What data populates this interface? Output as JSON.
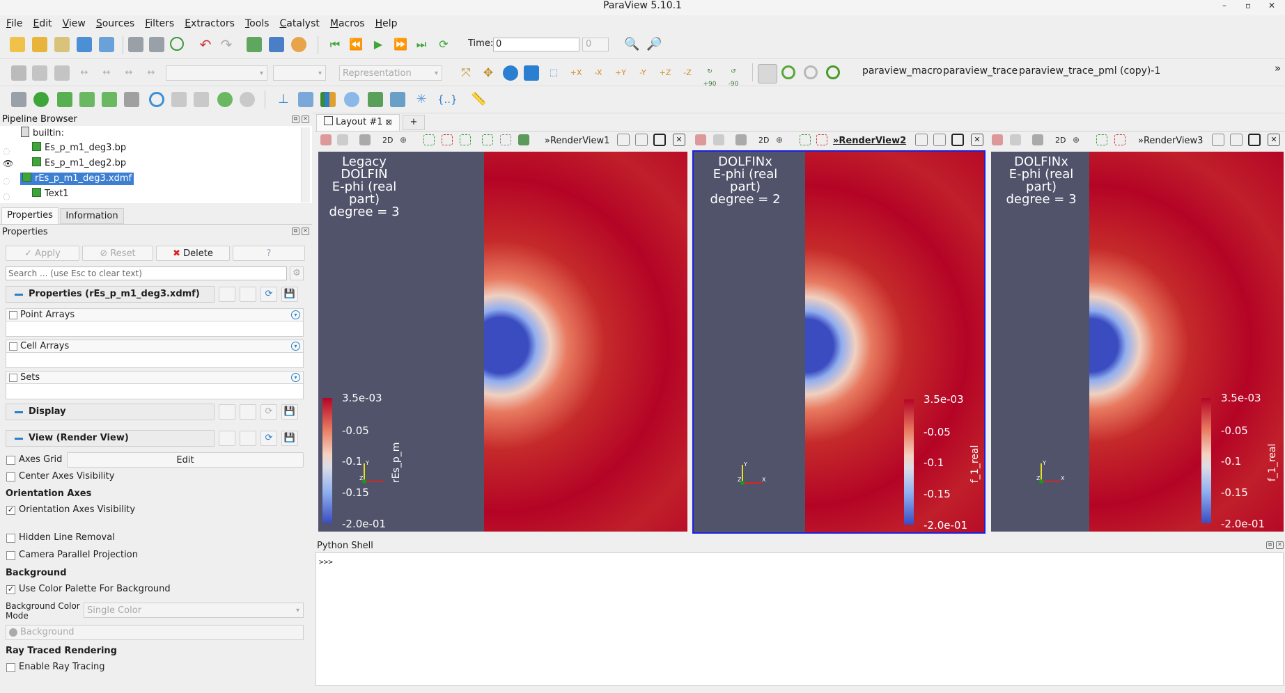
{
  "window": {
    "title": "ParaView 5.10.1"
  },
  "menu": [
    "File",
    "Edit",
    "View",
    "Sources",
    "Filters",
    "Extractors",
    "Tools",
    "Catalyst",
    "Macros",
    "Help"
  ],
  "toolbar": {
    "time_label": "Time:",
    "time_value": "0",
    "time_index": "0",
    "representation_placeholder": "Representation",
    "macros": [
      "paraview_macro",
      "paraview_trace",
      "paraview_trace_pml (copy)-1"
    ],
    "rotate_plus": "+90",
    "rotate_minus": "-90",
    "overflow": "»"
  },
  "pipeline": {
    "title": "Pipeline Browser",
    "root": "builtin:",
    "items": [
      {
        "label": "Es_p_m1_deg3.bp",
        "visible": false,
        "selected": false
      },
      {
        "label": "Es_p_m1_deg2.bp",
        "visible": true,
        "selected": false
      },
      {
        "label": "rEs_p_m1_deg3.xdmf",
        "visible": false,
        "selected": true
      },
      {
        "label": "Text1",
        "visible": false,
        "selected": false
      }
    ]
  },
  "tabs": {
    "properties": "Properties",
    "information": "Information"
  },
  "properties": {
    "title": "Properties",
    "apply": "Apply",
    "reset": "Reset",
    "delete": "Delete",
    "help": "?",
    "search_placeholder": "Search ... (use Esc to clear text)",
    "section_props": "Properties (rEs_p_m1_deg3.xdmf)",
    "point_arrays": "Point Arrays",
    "cell_arrays": "Cell Arrays",
    "sets": "Sets",
    "section_display": "Display",
    "section_view": "View (Render View)",
    "axes_grid": "Axes Grid",
    "edit": "Edit",
    "center_axes": "Center Axes Visibility",
    "orientation_axes": "Orientation Axes",
    "orientation_axes_visibility": "Orientation Axes Visibility",
    "orientation_axes_checked": true,
    "hidden_line": "Hidden Line Removal",
    "camera_parallel": "Camera Parallel Projection",
    "background": "Background",
    "use_palette": "Use Color Palette For Background",
    "use_palette_checked": true,
    "bg_mode_label1": "Background Color",
    "bg_mode_label2": "Mode",
    "bg_mode_value": "Single Color",
    "bg_value": "Background",
    "ray_traced": "Ray Traced Rendering",
    "enable_ray": "Enable Ray Tracing"
  },
  "layout": {
    "tab": "Layout #1",
    "add": "+"
  },
  "views": [
    {
      "name": "RenderView1",
      "active": false,
      "twod": "2D",
      "text": [
        "Legacy DOLFIN",
        "E-phi (real part)",
        "degree = 3"
      ],
      "bar_title": "rEs_p_m",
      "labels": [
        "3.5e-03",
        "-0.05",
        "-0.1",
        "-0.15",
        "-2.0e-01"
      ]
    },
    {
      "name": "RenderView2",
      "active": true,
      "twod": "2D",
      "text": [
        "DOLFINx",
        "E-phi (real part)",
        "degree = 2"
      ],
      "bar_title": "f_1_real",
      "labels": [
        "3.5e-03",
        "-0.05",
        "-0.1",
        "-0.15",
        "-2.0e-01"
      ]
    },
    {
      "name": "RenderView3",
      "active": false,
      "twod": "2D",
      "text": [
        "DOLFINx",
        "E-phi (real part)",
        "degree = 3"
      ],
      "bar_title": "f_1_real",
      "labels": [
        "3.5e-03",
        "-0.05",
        "-0.1",
        "-0.15",
        "-2.0e-01"
      ]
    }
  ],
  "axes_labels": {
    "y": "Y",
    "z": "Z",
    "x": "X"
  },
  "python": {
    "title": "Python Shell",
    "prompt": ">>>"
  },
  "colors": {
    "accent": "#2a7fc8",
    "background": "#50536a",
    "red": "#b40426",
    "blue": "#3b4cc0",
    "selection": "#3d7fd1"
  }
}
